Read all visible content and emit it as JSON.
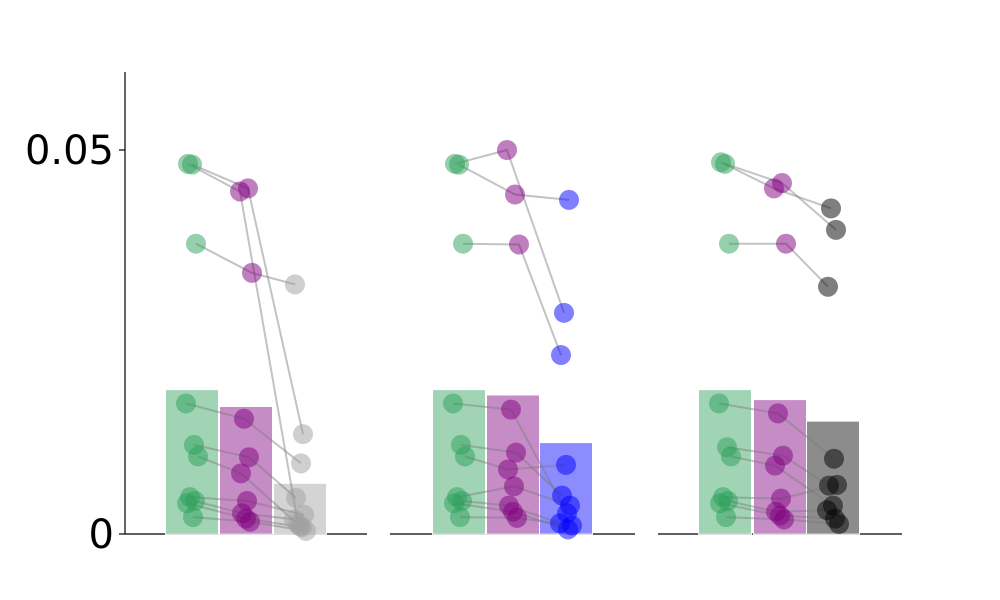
{
  "chart_data": {
    "type": "bar",
    "ylim": [
      0,
      0.06
    ],
    "yticks": [
      {
        "value": 0,
        "label": "0"
      },
      {
        "value": 0.05,
        "label": "0.05"
      }
    ],
    "grid": false,
    "panels": [
      {
        "categories": [
          "",
          "",
          ""
        ],
        "bars": [
          {
            "value": 0.0188,
            "color": "#2ca05a"
          },
          {
            "value": 0.0166,
            "color": "#800080"
          },
          {
            "value": 0.0066,
            "color": "#a0a0a0"
          }
        ],
        "subjects": [
          [
            0.0482,
            0.0446,
            0.0013
          ],
          [
            0.0481,
            0.045,
            0.013
          ],
          [
            0.0378,
            0.034,
            0.0325
          ],
          [
            0.017,
            0.015,
            0.0092
          ],
          [
            0.0116,
            0.01,
            0.0047
          ],
          [
            0.0101,
            0.0079,
            0.001
          ],
          [
            0.0048,
            0.0043,
            0.0025
          ],
          [
            0.0043,
            0.0027,
            0.0019
          ],
          [
            0.004,
            0.002,
            0.0009
          ],
          [
            0.0022,
            0.0016,
            0.0004
          ]
        ]
      },
      {
        "categories": [
          "",
          "",
          ""
        ],
        "bars": [
          {
            "value": 0.0188,
            "color": "#2ca05a"
          },
          {
            "value": 0.0181,
            "color": "#800080"
          },
          {
            "value": 0.0119,
            "color": "#0000ff"
          }
        ],
        "subjects": [
          [
            0.0482,
            0.05,
            0.0288
          ],
          [
            0.0481,
            0.0442,
            0.0435
          ],
          [
            0.0378,
            0.0377,
            0.0233
          ],
          [
            0.017,
            0.0162,
            0.0027
          ],
          [
            0.0116,
            0.0106,
            0.005
          ],
          [
            0.0101,
            0.0084,
            0.009
          ],
          [
            0.0048,
            0.0062,
            0.0037
          ],
          [
            0.0043,
            0.0037,
            0.0014
          ],
          [
            0.004,
            0.0029,
            0.0006
          ],
          [
            0.0022,
            0.0021,
            0.0011
          ]
        ]
      },
      {
        "categories": [
          "",
          "",
          ""
        ],
        "bars": [
          {
            "value": 0.0188,
            "color": "#2ca05a"
          },
          {
            "value": 0.0175,
            "color": "#800080"
          },
          {
            "value": 0.0147,
            "color": "#000000"
          }
        ],
        "subjects": [
          [
            0.0484,
            0.045,
            0.0424
          ],
          [
            0.0482,
            0.0457,
            0.0396
          ],
          [
            0.0378,
            0.0378,
            0.0322
          ],
          [
            0.017,
            0.0157,
            0.0098
          ],
          [
            0.0113,
            0.0102,
            0.0063
          ],
          [
            0.0101,
            0.0089,
            0.0037
          ],
          [
            0.0048,
            0.0046,
            0.0064
          ],
          [
            0.0043,
            0.0029,
            0.0031
          ],
          [
            0.004,
            0.0024,
            0.002
          ],
          [
            0.0022,
            0.0019,
            0.0013
          ]
        ]
      }
    ]
  }
}
